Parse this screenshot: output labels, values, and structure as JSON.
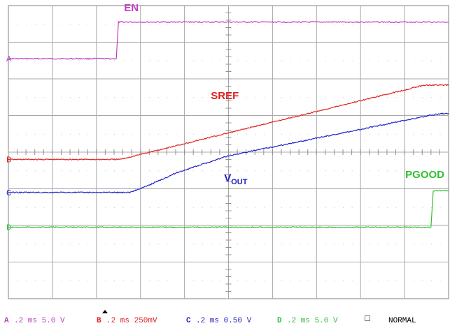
{
  "chart_data": {
    "type": "line",
    "xlim": [
      0,
      2.0
    ],
    "ylim": [
      -4,
      4
    ],
    "grid": true,
    "series": [
      {
        "name": "EN",
        "channel": "A",
        "color": "#c040c0",
        "offset_div": 2.55,
        "x": [
          0,
          0.49,
          0.5,
          2.0
        ],
        "y_div": [
          0,
          0,
          1.0,
          1.0
        ]
      },
      {
        "name": "SREF",
        "channel": "B",
        "color": "#e02020",
        "offset_div": -0.2,
        "x": [
          0,
          0.5,
          0.52,
          1.89,
          2.0
        ],
        "y_div": [
          0,
          0,
          0.02,
          2.03,
          2.03
        ]
      },
      {
        "name": "VOUT",
        "channel": "C",
        "color": "#2020c8",
        "offset_div": -1.1,
        "x": [
          0,
          0.55,
          0.62,
          0.75,
          0.77,
          1.0,
          1.92,
          1.97,
          2.0
        ],
        "y_div": [
          0,
          0,
          0.15,
          0.5,
          0.55,
          1.0,
          2.11,
          2.15,
          2.15
        ]
      },
      {
        "name": "PGOOD",
        "channel": "D",
        "color": "#30c030",
        "offset_div": -2.05,
        "x": [
          0,
          1.92,
          1.93,
          2.0
        ],
        "y_div": [
          0,
          0,
          1.0,
          1.0
        ]
      }
    ],
    "annotations": [
      {
        "text": "EN",
        "color": "#c040c0",
        "x": 0.5,
        "y_div": 3.85
      },
      {
        "text": "SREF",
        "color": "#e02020",
        "x": 1.08,
        "y_div": 1.45
      },
      {
        "text": "V",
        "sub": "OUT",
        "color": "#2020c8",
        "x": 1.08,
        "y_div": -0.8
      },
      {
        "text": "PGOOD",
        "color": "#30c030",
        "x": 2.02,
        "y_div": -0.7
      }
    ]
  },
  "channel_markers": [
    {
      "letter": "A",
      "color": "#c040c0"
    },
    {
      "letter": "B",
      "color": "#e02020"
    },
    {
      "letter": "C",
      "color": "#2020c8"
    },
    {
      "letter": "D",
      "color": "#30c030"
    }
  ],
  "footer": {
    "items": [
      {
        "ch": "A",
        "text": ".2 ms 5.0 V",
        "color": "#c040c0"
      },
      {
        "ch": "B",
        "text": ".2 ms 250mV",
        "color": "#e02020"
      },
      {
        "ch": "C",
        "text": ".2 ms 0.50 V",
        "color": "#2020c8"
      },
      {
        "ch": "D",
        "text": ".2 ms 5.0 V",
        "color": "#30c030"
      }
    ],
    "mode": "NORMAL"
  }
}
